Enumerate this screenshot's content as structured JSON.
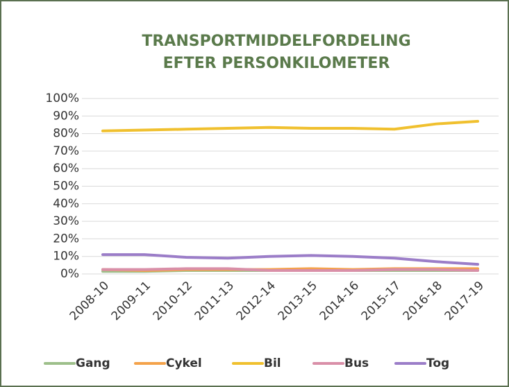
{
  "chart_data": {
    "type": "line",
    "title": [
      "TRANSPORTMIDDELFORDELING",
      "EFTER PERSONKILOMETER"
    ],
    "categories": [
      "2008-10",
      "2009-11",
      "2010-12",
      "2011-13",
      "2012-14",
      "2013-15",
      "2014-16",
      "2015-17",
      "2016-18",
      "2017-19"
    ],
    "series": [
      {
        "name": "Gang",
        "color": "#9dbf8a",
        "values": [
          1.5,
          1.5,
          2,
          2,
          2,
          2,
          2,
          2,
          2,
          2
        ]
      },
      {
        "name": "Cykel",
        "color": "#f4a24a",
        "values": [
          2.5,
          2,
          2.5,
          2.5,
          2.5,
          3,
          2.5,
          3,
          3,
          3
        ]
      },
      {
        "name": "Bil",
        "color": "#f0c02e",
        "values": [
          81.5,
          82,
          82.5,
          83,
          83.5,
          83,
          83,
          82.5,
          85.5,
          87
        ]
      },
      {
        "name": "Bus",
        "color": "#d98fa8",
        "values": [
          2.5,
          2.5,
          3,
          3,
          2,
          2,
          2,
          2.5,
          2.5,
          2
        ]
      },
      {
        "name": "Tog",
        "color": "#9b7dc8",
        "values": [
          11,
          11,
          9.5,
          9,
          10,
          10.5,
          10,
          9,
          7,
          5.5
        ]
      }
    ],
    "ylim": [
      0,
      100
    ],
    "yticks": [
      {
        "value": 0,
        "label": "0%"
      },
      {
        "value": 10,
        "label": "10%"
      },
      {
        "value": 20,
        "label": "20%"
      },
      {
        "value": 30,
        "label": "30%"
      },
      {
        "value": 40,
        "label": "40%"
      },
      {
        "value": 50,
        "label": "50%"
      },
      {
        "value": 60,
        "label": "60%"
      },
      {
        "value": 70,
        "label": "70%"
      },
      {
        "value": 80,
        "label": "80%"
      },
      {
        "value": 90,
        "label": "90%"
      },
      {
        "value": 100,
        "label": "100%"
      }
    ],
    "grid": true,
    "legend": "bottom"
  }
}
